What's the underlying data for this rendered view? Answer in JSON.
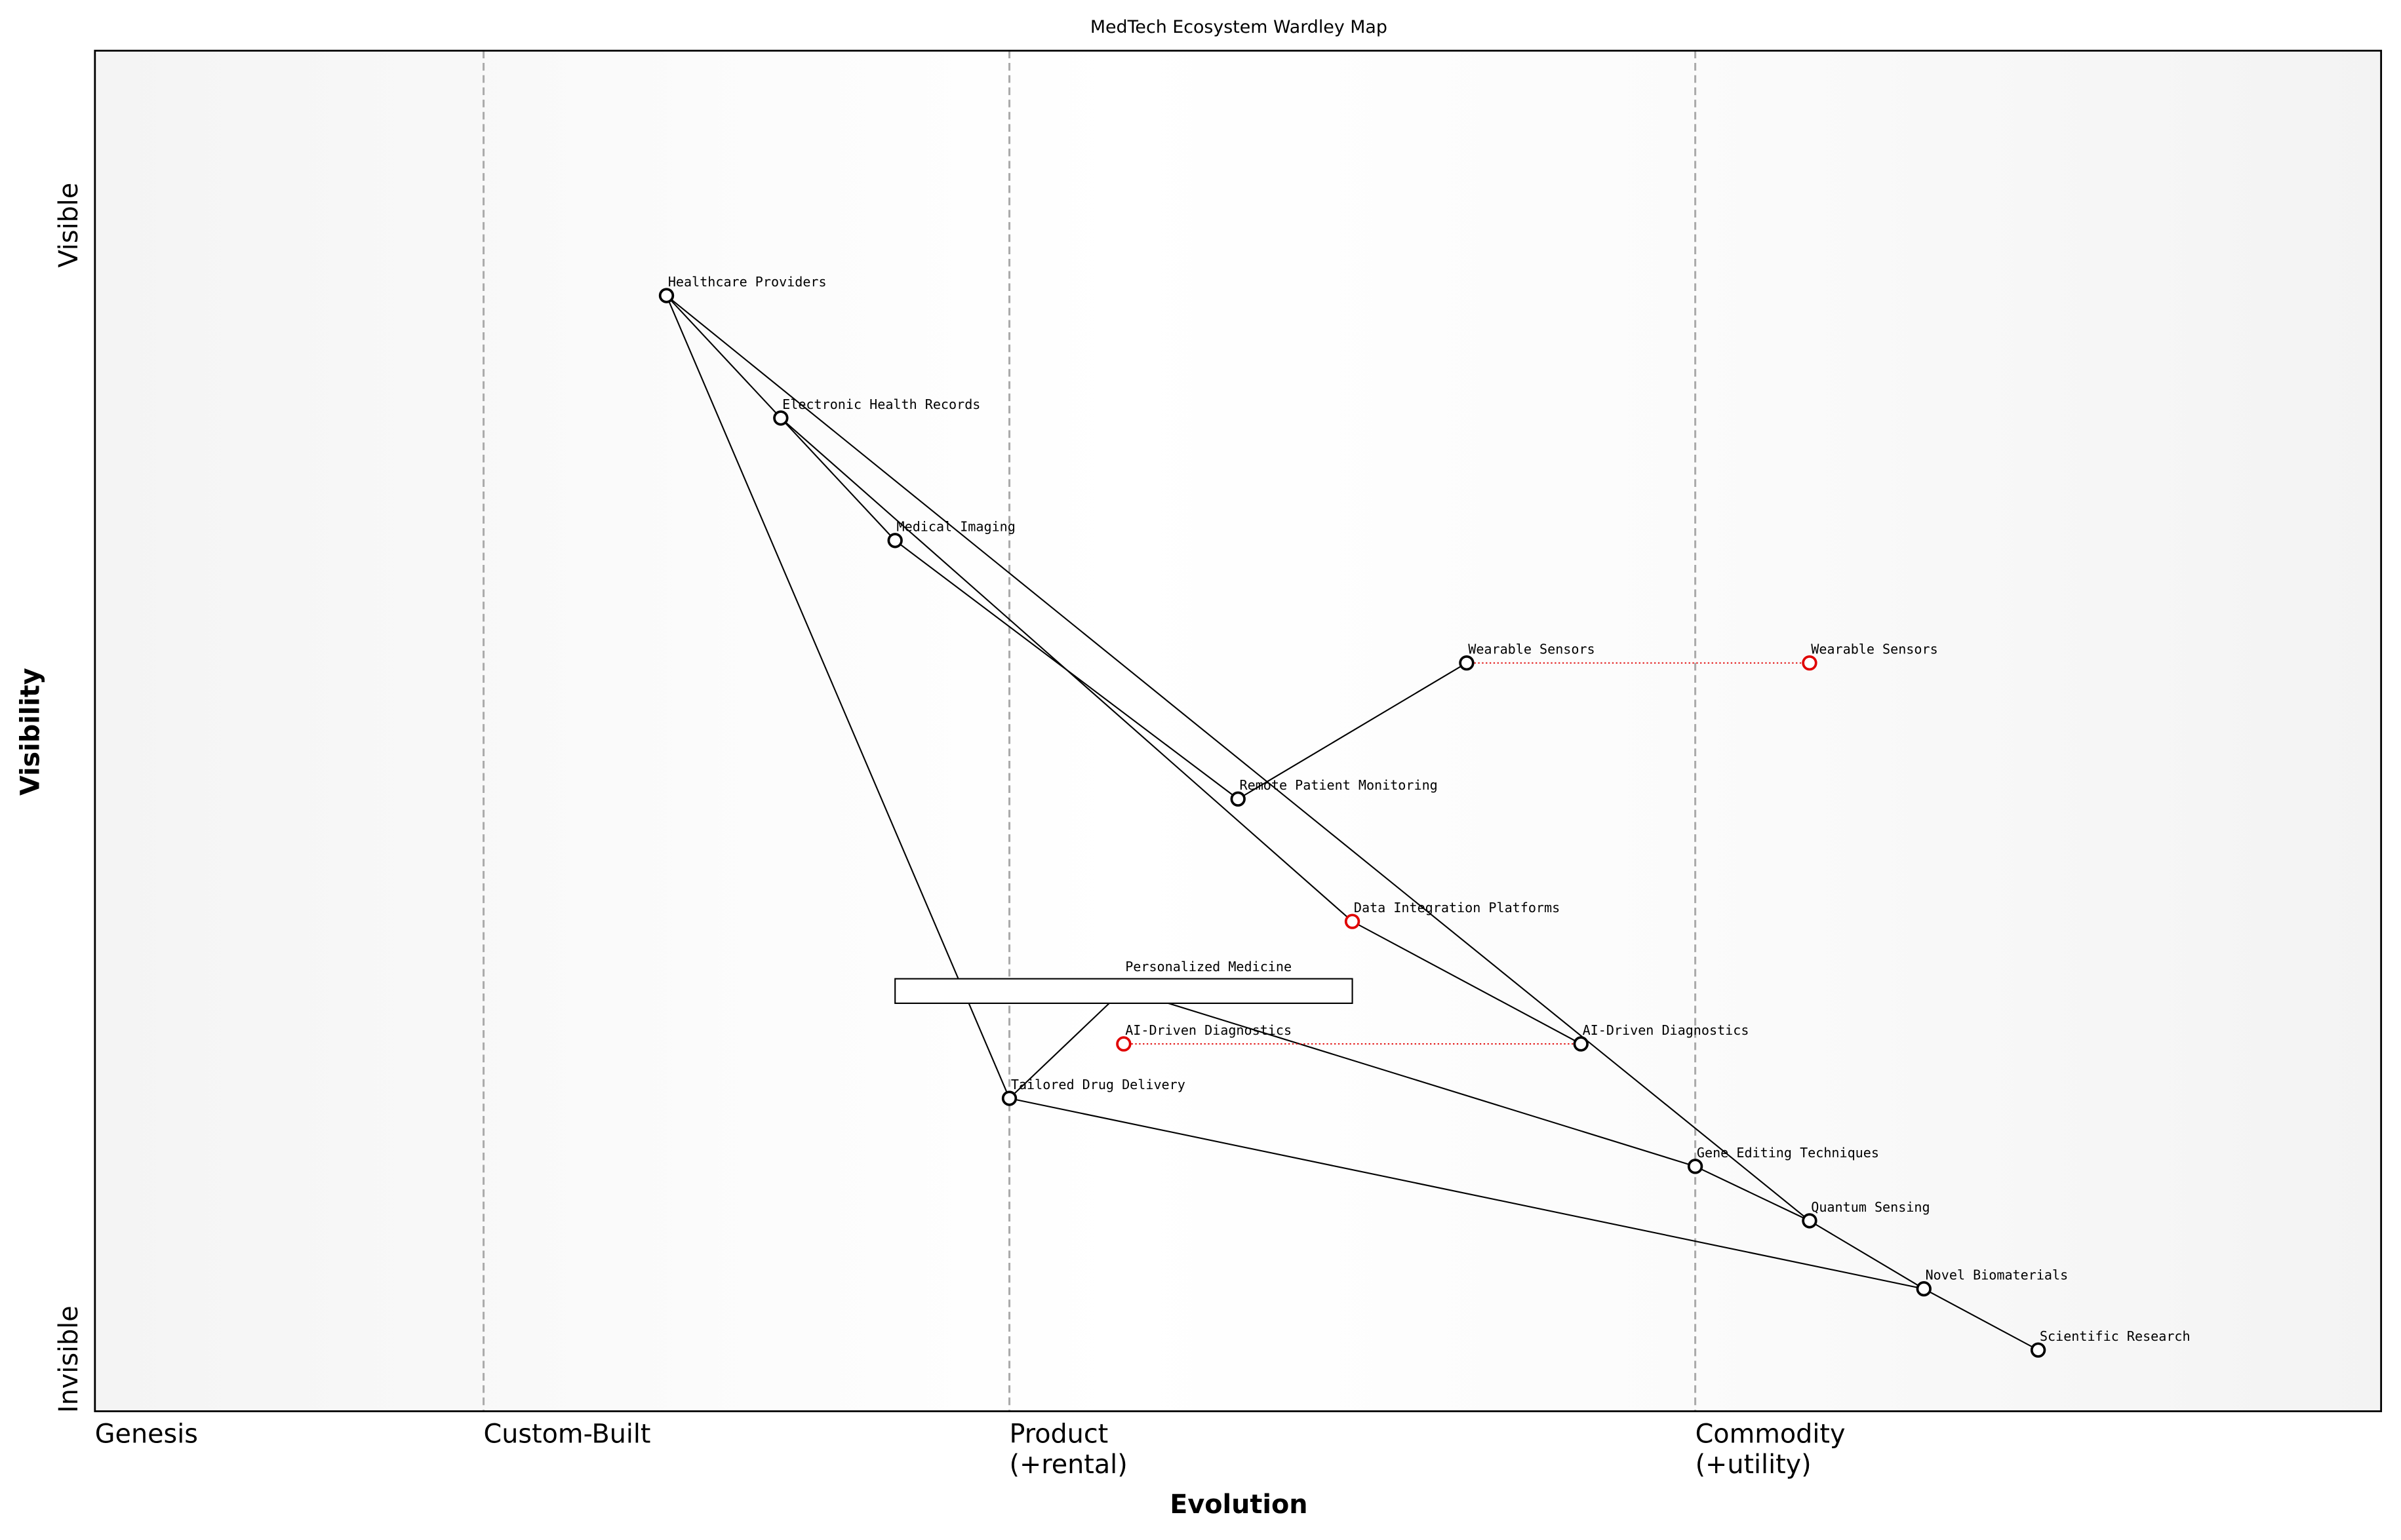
{
  "chart_data": {
    "type": "wardley",
    "title": "MedTech Ecosystem Wardley Map",
    "x_label": "Evolution",
    "y_label": "Visibility",
    "y_top_label": "Visible",
    "y_bottom_label": "Invisible",
    "xlim": [
      0,
      1
    ],
    "ylim": [
      0,
      1
    ],
    "stages": [
      {
        "label": [
          "Genesis"
        ],
        "x": 0
      },
      {
        "label": [
          "Custom-Built"
        ],
        "x": 0.17
      },
      {
        "label": [
          "Product",
          "(+rental)"
        ],
        "x": 0.4
      },
      {
        "label": [
          "Commodity",
          "(+utility)"
        ],
        "x": 0.7
      }
    ],
    "components": [
      {
        "name": "Healthcare Providers",
        "x": 0.25,
        "y": 0.82,
        "color": "#000000"
      },
      {
        "name": "Electronic Health Records",
        "x": 0.3,
        "y": 0.73,
        "color": "#000000"
      },
      {
        "name": "Medical Imaging",
        "x": 0.35,
        "y": 0.64,
        "color": "#000000"
      },
      {
        "name": "Wearable Sensors",
        "x": 0.6,
        "y": 0.55,
        "color": "#000000"
      },
      {
        "name": "Wearable Sensors",
        "x": 0.75,
        "y": 0.55,
        "color": "#e00000"
      },
      {
        "name": "Remote Patient Monitoring",
        "x": 0.5,
        "y": 0.45,
        "color": "#000000"
      },
      {
        "name": "Data Integration Platforms",
        "x": 0.55,
        "y": 0.36,
        "color": "#e00000"
      },
      {
        "name": "Personalized Medicine",
        "x": 0.45,
        "y": 0.31,
        "color": "#000000"
      },
      {
        "name": "AI-Driven Diagnostics",
        "x": 0.45,
        "y": 0.27,
        "color": "#e00000"
      },
      {
        "name": "AI-Driven Diagnostics",
        "x": 0.65,
        "y": 0.27,
        "color": "#000000"
      },
      {
        "name": "Tailored Drug Delivery",
        "x": 0.4,
        "y": 0.23,
        "color": "#000000"
      },
      {
        "name": "Gene Editing Techniques",
        "x": 0.7,
        "y": 0.18,
        "color": "#000000"
      },
      {
        "name": "Quantum Sensing",
        "x": 0.75,
        "y": 0.14,
        "color": "#000000"
      },
      {
        "name": "Novel Biomaterials",
        "x": 0.8,
        "y": 0.09,
        "color": "#000000"
      },
      {
        "name": "Scientific Research",
        "x": 0.85,
        "y": 0.045,
        "color": "#000000"
      }
    ],
    "links": [
      [
        0,
        1
      ],
      [
        1,
        2
      ],
      [
        0,
        10
      ],
      [
        0,
        12
      ],
      [
        2,
        5
      ],
      [
        5,
        3
      ],
      [
        1,
        6
      ],
      [
        6,
        9
      ],
      [
        10,
        7
      ],
      [
        7,
        11
      ],
      [
        10,
        13
      ],
      [
        11,
        12
      ],
      [
        12,
        13
      ],
      [
        13,
        14
      ]
    ],
    "evolutions": [
      [
        3,
        4
      ],
      [
        8,
        9
      ]
    ],
    "pipeline": {
      "x_start": 0.35,
      "x_end": 0.55,
      "y": 0.31
    }
  }
}
